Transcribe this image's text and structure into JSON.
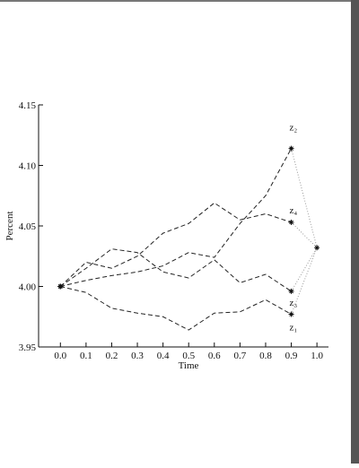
{
  "chart_data": {
    "type": "line",
    "x_label": "Time",
    "y_label": "Percent",
    "x": [
      0,
      0.1,
      0.2,
      0.3,
      0.4,
      0.5,
      0.6,
      0.7,
      0.8,
      0.9
    ],
    "series": [
      {
        "name": "z₁",
        "color": "#222222",
        "values": [
          4.0,
          3.995,
          3.982,
          3.978,
          3.975,
          3.964,
          3.978,
          3.979,
          3.989,
          3.977
        ]
      },
      {
        "name": "z₂",
        "color": "#222222",
        "values": [
          4.0,
          4.005,
          4.009,
          4.012,
          4.017,
          4.028,
          4.024,
          4.052,
          4.075,
          4.114
        ]
      },
      {
        "name": "z₃",
        "color": "#222222",
        "values": [
          4.0,
          4.015,
          4.031,
          4.028,
          4.012,
          4.007,
          4.022,
          4.003,
          4.01,
          3.996
        ]
      },
      {
        "name": "z₄",
        "color": "#222222",
        "values": [
          4.0,
          4.02,
          4.015,
          4.025,
          4.044,
          4.052,
          4.069,
          4.055,
          4.06,
          4.053
        ]
      }
    ],
    "terminal": {
      "x": {
        "value": 1,
        "label": "1.0"
      },
      "value": 4.032,
      "color": "#999999"
    },
    "xlim": [
      -0.085,
      1.045
    ],
    "ylim": [
      3.95,
      4.15
    ],
    "xticks": [
      {
        "value": 0,
        "label": "0.0"
      },
      0.1,
      0.2,
      0.3,
      0.4,
      0.5,
      0.6,
      0.7,
      0.8,
      0.9,
      {
        "value": 1,
        "label": "1.0"
      }
    ],
    "yticks": [
      3.95,
      {
        "value": 4,
        "label": "4.00"
      },
      4.05,
      {
        "value": 4.1,
        "label": "4.10"
      },
      4.15
    ],
    "grid": false
  }
}
